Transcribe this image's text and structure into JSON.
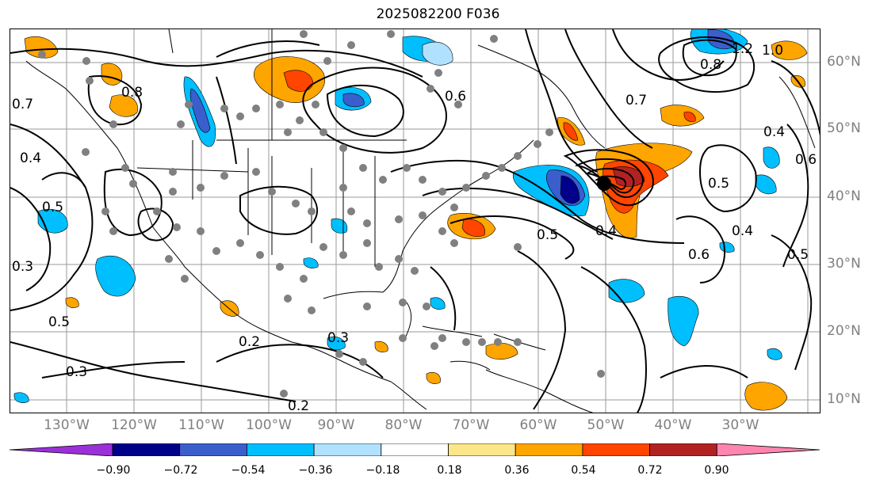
{
  "title": "2025082200 F036",
  "lon_labels": [
    "130°W",
    "120°W",
    "110°W",
    "100°W",
    "90°W",
    "80°W",
    "70°W",
    "60°W",
    "50°W",
    "40°W",
    "30°W"
  ],
  "lat_labels": [
    "60°N",
    "50°N",
    "40°N",
    "30°N",
    "20°N",
    "10°N"
  ],
  "colorbar": {
    "ticks": [
      "−0.90",
      "−0.72",
      "−0.54",
      "−0.36",
      "−0.18",
      "0.18",
      "0.36",
      "0.54",
      "0.72",
      "0.90"
    ],
    "colors": [
      "#9b30d9",
      "#00008b",
      "#3a5fcd",
      "#00bfff",
      "#b0e2ff",
      "#ffffff",
      "#fce68a",
      "#ffa500",
      "#ff4500",
      "#b22222",
      "#ff85b0"
    ]
  },
  "contour_labels": [
    "0.7",
    "0.8",
    "0.6",
    "0.5",
    "0.4",
    "0.3",
    "0.2",
    "1.2",
    "1.0",
    "0.3",
    "0.2",
    "0.3",
    "0.5",
    "0.4",
    "0.5",
    "0.6",
    "0.7",
    "0.8",
    "0.4",
    "0.5",
    "0.6",
    "0.5",
    "0.4"
  ],
  "storm_marker": "black-dot"
}
